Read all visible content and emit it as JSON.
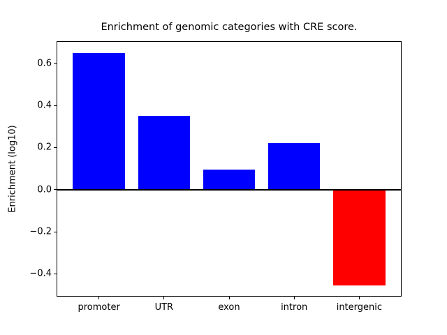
{
  "chart_data": {
    "type": "bar",
    "title": "Enrichment of genomic categories with CRE score.",
    "ylabel": "Enrichment (log10)",
    "categories": [
      "promoter",
      "UTR",
      "exon",
      "intron",
      "intergenic"
    ],
    "values": [
      0.65,
      0.35,
      0.095,
      0.22,
      -0.455
    ],
    "positive_color": "#0000ff",
    "negative_color": "#ff0000",
    "bar_colors": [
      "#0000ff",
      "#0000ff",
      "#0000ff",
      "#0000ff",
      "#ff0000"
    ],
    "ylim": [
      -0.505,
      0.702
    ],
    "yticks": [
      0.6,
      0.4,
      0.2,
      0.0,
      -0.2,
      -0.4
    ],
    "ytick_labels": [
      "0.6",
      "0.4",
      "0.2",
      "0.0",
      "−0.2",
      "−0.4"
    ],
    "zero_line": 0.0,
    "grid": false,
    "legend_position": "none",
    "background_color": "#ffffff",
    "axis_color": "#000000"
  }
}
